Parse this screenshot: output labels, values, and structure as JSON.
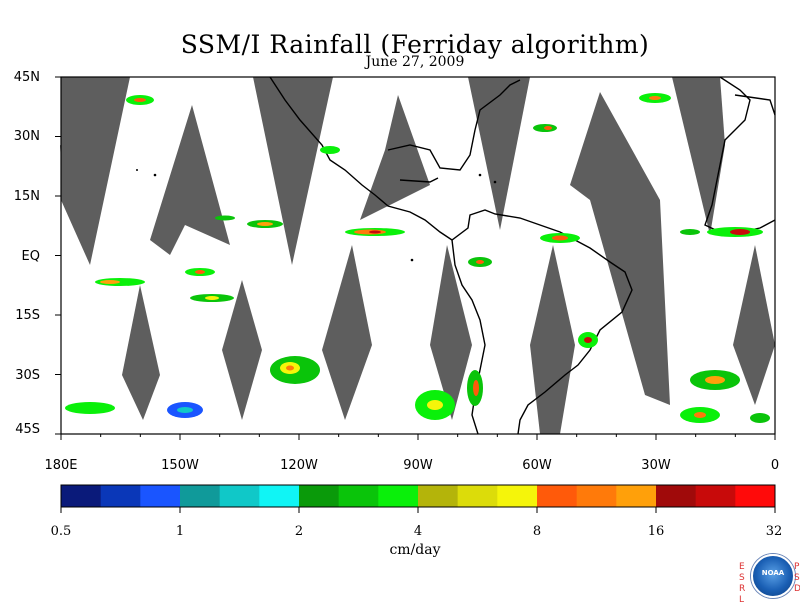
{
  "title": "SSM/I Rainfall (Ferriday algorithm)",
  "subtitle": "June 27, 2009",
  "lat_labels": [
    "45N",
    "30N",
    "15N",
    "EQ",
    "15S",
    "30S",
    "45S"
  ],
  "lon_labels": [
    "180E",
    "150W",
    "120W",
    "90W",
    "60W",
    "30W",
    "0"
  ],
  "colorbar": {
    "colors": [
      "#0a1a7a",
      "#0a37b8",
      "#1a55ff",
      "#109a9a",
      "#10c8c8",
      "#10f5f5",
      "#0a9a0a",
      "#0ac40a",
      "#0af00a",
      "#b4b40a",
      "#dcdc0a",
      "#f5f50a",
      "#ff5a0a",
      "#ff7a0a",
      "#ffa00a",
      "#a00a0a",
      "#c80a0a",
      "#ff0a0a"
    ],
    "tick_labels": [
      "0.5",
      "1",
      "2",
      "4",
      "8",
      "16",
      "32"
    ]
  },
  "units": "cm/day",
  "logo": {
    "left_text": "ESRL",
    "right_text": "PSD",
    "center_text": "NOAA"
  },
  "map": {
    "no_data_color": "#5e5e5e",
    "coast_color": "#000000"
  }
}
